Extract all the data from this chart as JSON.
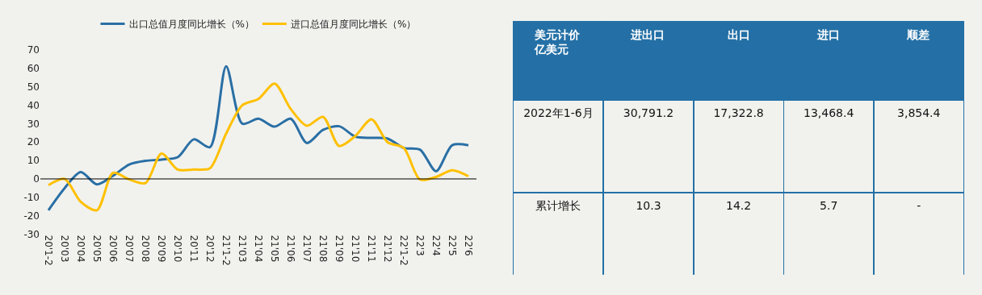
{
  "chart_data": [
    {
      "type": "line",
      "categories": [
        "20'1-2",
        "20'03",
        "20'04",
        "20'05",
        "20'06",
        "20'07",
        "20'08",
        "20'09",
        "20'10",
        "20'11",
        "20'12",
        "21'1-2",
        "21'03",
        "21'04",
        "21'05",
        "21'06",
        "21'07",
        "21'08",
        "21'09",
        "21'10",
        "21'11",
        "21'12",
        "22'1-2",
        "22'3",
        "22'4",
        "22'5",
        "22'6"
      ],
      "series": [
        {
          "name": "出口总值月度同比增长（%）",
          "color": "#2a6fa5",
          "values": [
            -17.0,
            -5,
            3.7,
            -3,
            1.7,
            7.8,
            9.8,
            10.5,
            11.8,
            21.5,
            17.2,
            61.2,
            30,
            32.7,
            28.4,
            32.7,
            19.5,
            26.6,
            28.6,
            22.9,
            22.3,
            21.9,
            16.8,
            15.9,
            4.2,
            18.3,
            18.3
          ]
        },
        {
          "name": "进口总值月度同比增长（%）",
          "color": "#ffc000",
          "values": [
            -3.4,
            0,
            -12.4,
            -17,
            3.3,
            -0.3,
            -2.3,
            13.8,
            5.1,
            5.1,
            5.8,
            24.6,
            40,
            43.4,
            51.7,
            38,
            28.9,
            33.7,
            17.9,
            23.3,
            32.4,
            19.9,
            16.8,
            -0.3,
            1.1,
            4.7,
            1.5
          ]
        }
      ],
      "ylim": [
        -30,
        70
      ],
      "yticks": [
        -30,
        -20,
        -10,
        0,
        10,
        20,
        30,
        40,
        50,
        60,
        70
      ],
      "ref_lines": [
        {
          "axis": "y",
          "value": 0,
          "color": "#000000"
        }
      ],
      "legend": "top",
      "marker": "none",
      "line_style": "solid"
    },
    {
      "type": "other",
      "title": "美元计价",
      "subtitle": "亿美元",
      "categories": [
        "进出口",
        "出口",
        "进口",
        "顺差"
      ],
      "y_categories": [
        "2022年1-6月",
        "累计增长"
      ],
      "cell_labels": [
        [
          "30,791.2",
          "17,322.8",
          "13,468.4",
          "3,854.4"
        ],
        [
          "10.3",
          "14.2",
          "5.7",
          "-"
        ]
      ]
    }
  ]
}
